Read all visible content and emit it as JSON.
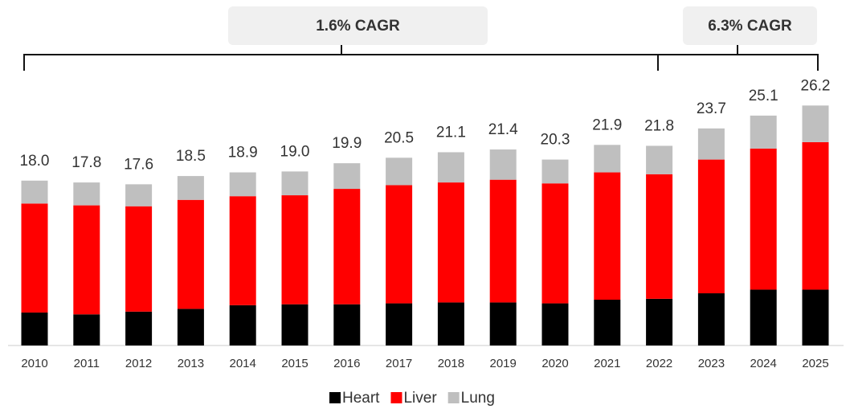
{
  "chart_data": {
    "type": "stacked_bar",
    "categories": [
      "2010",
      "2011",
      "2012",
      "2013",
      "2014",
      "2015",
      "2016",
      "2017",
      "2018",
      "2019",
      "2020",
      "2021",
      "2022",
      "2023",
      "2024",
      "2025"
    ],
    "series": [
      {
        "name": "Heart",
        "color": "#000000",
        "values": [
          3.6,
          3.4,
          3.7,
          4.0,
          4.4,
          4.5,
          4.5,
          4.6,
          4.7,
          4.7,
          4.6,
          5.0,
          5.1,
          5.7,
          6.1,
          6.1
        ]
      },
      {
        "name": "Liver",
        "color": "#ff0000",
        "values": [
          11.9,
          11.9,
          11.5,
          11.9,
          11.9,
          11.9,
          12.6,
          12.9,
          13.1,
          13.4,
          13.1,
          13.9,
          13.6,
          14.6,
          15.4,
          16.1
        ]
      },
      {
        "name": "Lung",
        "color": "#bfbfbf",
        "values": [
          2.5,
          2.5,
          2.4,
          2.6,
          2.6,
          2.6,
          2.8,
          3.0,
          3.3,
          3.3,
          2.6,
          3.0,
          3.1,
          3.4,
          3.6,
          4.0
        ]
      }
    ],
    "totals": [
      18.0,
      17.8,
      17.6,
      18.5,
      18.9,
      19.0,
      19.9,
      20.5,
      21.1,
      21.4,
      20.3,
      21.9,
      21.8,
      23.7,
      25.1,
      26.2
    ],
    "total_labels": [
      "18.0",
      "17.8",
      "17.6",
      "18.5",
      "18.9",
      "19.0",
      "19.9",
      "20.5",
      "21.1",
      "21.4",
      "20.3",
      "21.9",
      "21.8",
      "23.7",
      "25.1",
      "26.2"
    ],
    "annotations": [
      {
        "text": "1.6% CAGR"
      },
      {
        "text": "6.3% CAGR"
      }
    ],
    "legend": "bottom"
  }
}
